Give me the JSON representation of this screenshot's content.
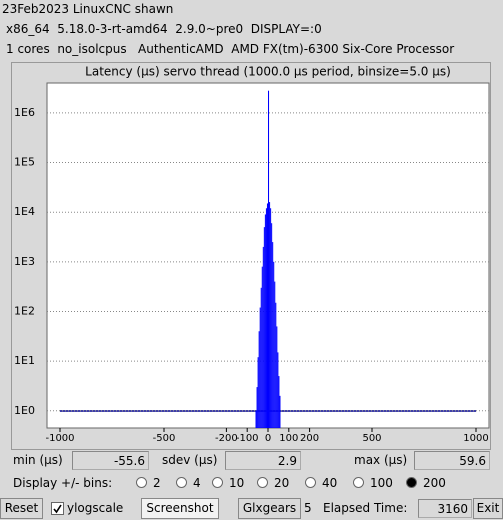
{
  "header": {
    "line1": "23Feb2023 LinuxCNC shawn",
    "line2": "x86_64  5.18.0-3-rt-amd64  2.9.0~pre0  DISPLAY=:0",
    "line3": "1 cores  no_isolcpus   AuthenticAMD  AMD FX(tm)-6300 Six-Core Processor"
  },
  "chart_data": {
    "type": "histogram",
    "title": "Latency (µs) servo thread (1000.0 µs period, binsize=5.0 µs)",
    "bins": [
      -60,
      -55,
      -50,
      -45,
      -40,
      -35,
      -30,
      -25,
      -20,
      -15,
      -10,
      -5,
      0,
      5,
      10,
      15,
      20,
      25,
      30,
      35,
      40,
      45,
      50,
      55,
      60
    ],
    "values": [
      1,
      3,
      12,
      40,
      120,
      300,
      800,
      2000,
      5000,
      9000,
      12000,
      15000,
      2800000,
      16000,
      12000,
      6000,
      2500,
      1000,
      400,
      150,
      50,
      15,
      5,
      2
    ],
    "color": "#0000ff",
    "xlim": [
      -1062.5,
      1062.5
    ],
    "xticks": [
      -1000,
      -500,
      -200,
      -100,
      0,
      100,
      200,
      500,
      1000
    ],
    "ylim": [
      0.45,
      4000000
    ],
    "yticks": [
      {
        "value": 1,
        "label": "1E0"
      },
      {
        "value": 10,
        "label": "1E1"
      },
      {
        "value": 100,
        "label": "1E2"
      },
      {
        "value": 1000,
        "label": "1E3"
      },
      {
        "value": 10000,
        "label": "1E4"
      },
      {
        "value": 100000,
        "label": "1E5"
      },
      {
        "value": 1000000,
        "label": "1E6"
      }
    ],
    "ylog": true,
    "grid": true
  },
  "stats": {
    "min_label": "min (µs)",
    "min": -55.6,
    "sdev_label": "sdev (µs)",
    "sdev": 2.9,
    "max_label": "max (µs)",
    "max": 59.6
  },
  "bins_control": {
    "label": "Display +/- bins:",
    "options": [
      2,
      4,
      10,
      20,
      40,
      100,
      200
    ],
    "selected": 200
  },
  "toolbar": {
    "reset": "Reset",
    "ylogscale": "ylogscale",
    "ylogscale_checked": true,
    "screenshot": "Screenshot",
    "glxgears": "Glxgears",
    "glxgears_count": 5,
    "elapsed_label": "Elapsed Time:",
    "elapsed": 3160,
    "exit": "Exit"
  }
}
